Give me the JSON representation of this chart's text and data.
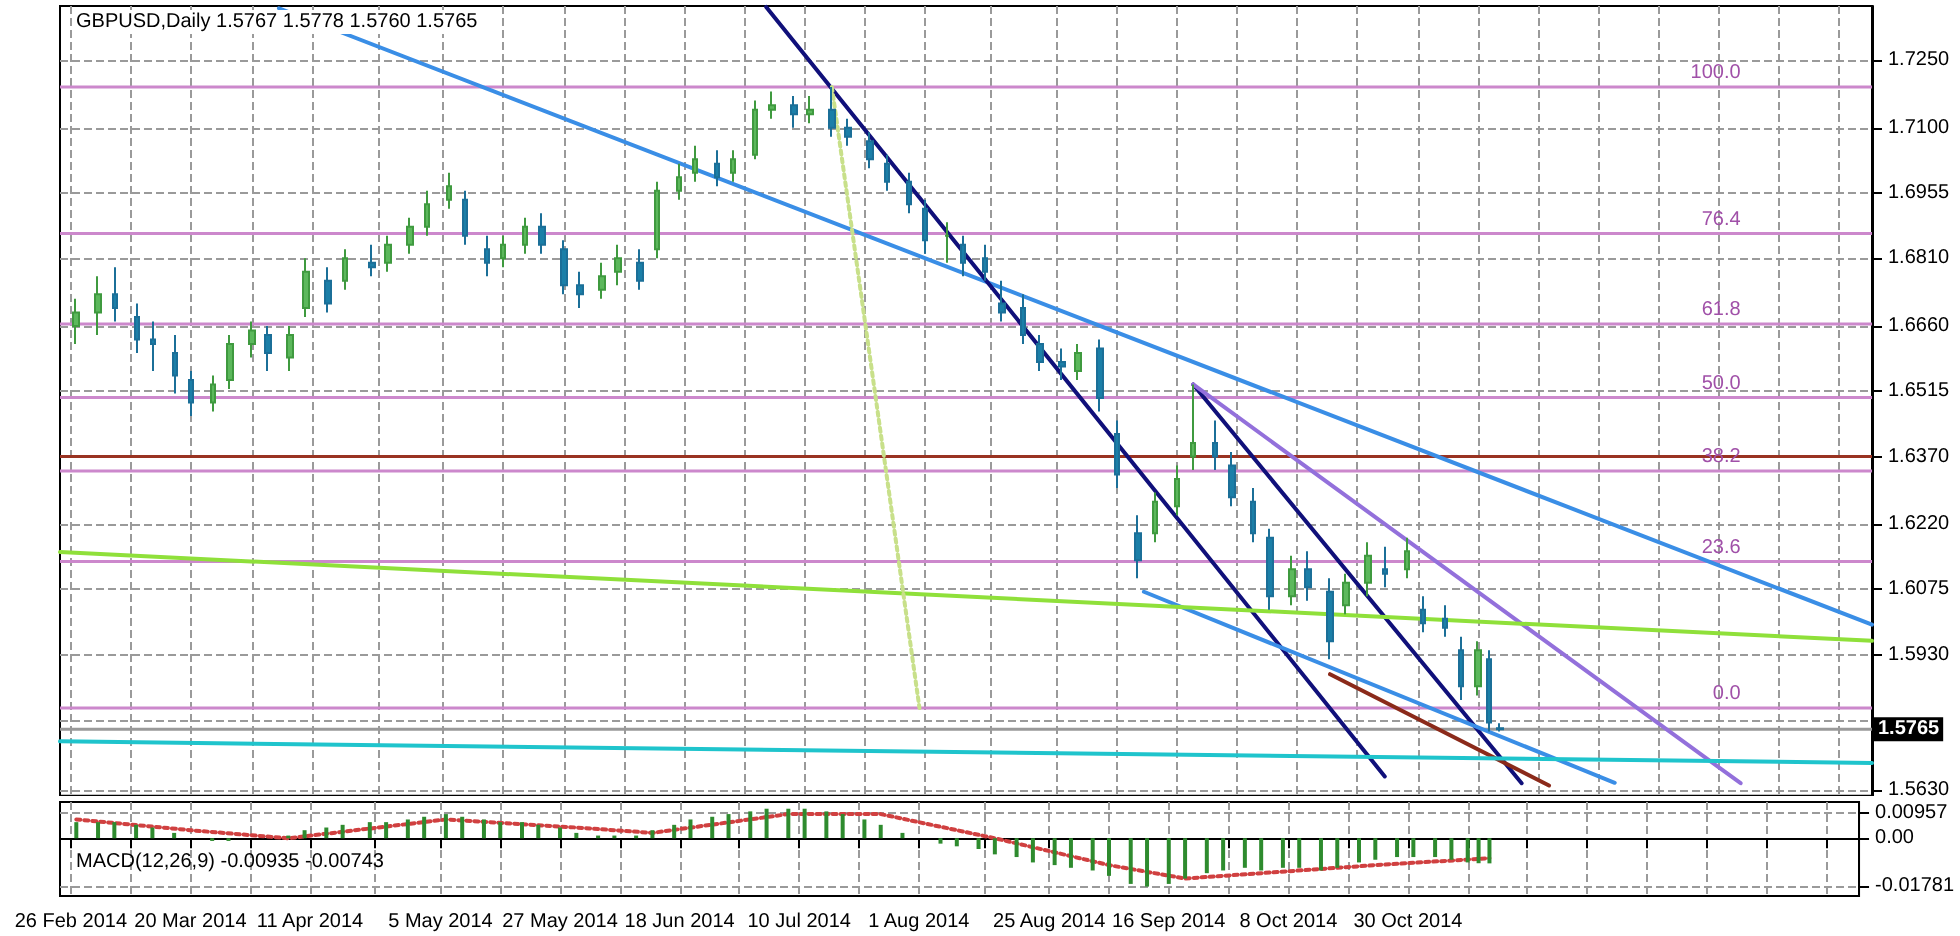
{
  "chart_data": [
    {
      "type": "candlestick",
      "title": "GBPUSD,Daily 1.5767 1.5778 1.5760 1.5765",
      "x": [
        "2014-02-27",
        "2014-03-03",
        "2014-03-06",
        "2014-03-10",
        "2014-03-13",
        "2014-03-17",
        "2014-03-20",
        "2014-03-24",
        "2014-03-27",
        "2014-03-31",
        "2014-04-03",
        "2014-04-07",
        "2014-04-10",
        "2014-04-14",
        "2014-04-17",
        "2014-04-22",
        "2014-04-25",
        "2014-04-29",
        "2014-05-02",
        "2014-05-06",
        "2014-05-09",
        "2014-05-13",
        "2014-05-16",
        "2014-05-20",
        "2014-05-23",
        "2014-05-27",
        "2014-05-30",
        "2014-06-03",
        "2014-06-06",
        "2014-06-10",
        "2014-06-13",
        "2014-06-17",
        "2014-06-20",
        "2014-06-24",
        "2014-06-27",
        "2014-07-01",
        "2014-07-04",
        "2014-07-08",
        "2014-07-11",
        "2014-07-15",
        "2014-07-18",
        "2014-07-22",
        "2014-07-25",
        "2014-07-29",
        "2014-08-01",
        "2014-08-05",
        "2014-08-08",
        "2014-08-12",
        "2014-08-15",
        "2014-08-19",
        "2014-08-22",
        "2014-08-26",
        "2014-08-29",
        "2014-09-02",
        "2014-09-05",
        "2014-09-09",
        "2014-09-12",
        "2014-09-16",
        "2014-09-19",
        "2014-09-23",
        "2014-09-26",
        "2014-09-30",
        "2014-10-03",
        "2014-10-07",
        "2014-10-10",
        "2014-10-14",
        "2014-10-17",
        "2014-10-21",
        "2014-10-24",
        "2014-10-28",
        "2014-10-31",
        "2014-11-04",
        "2014-11-07",
        "2014-11-10",
        "2014-11-12",
        "2014-11-14"
      ],
      "ohlc": [
        [
          1.666,
          1.672,
          1.662,
          1.669
        ],
        [
          1.669,
          1.677,
          1.664,
          1.673
        ],
        [
          1.673,
          1.679,
          1.667,
          1.67
        ],
        [
          1.668,
          1.671,
          1.66,
          1.663
        ],
        [
          1.663,
          1.667,
          1.656,
          1.662
        ],
        [
          1.66,
          1.664,
          1.651,
          1.655
        ],
        [
          1.654,
          1.656,
          1.646,
          1.649
        ],
        [
          1.649,
          1.655,
          1.647,
          1.653
        ],
        [
          1.654,
          1.664,
          1.652,
          1.662
        ],
        [
          1.662,
          1.667,
          1.659,
          1.665
        ],
        [
          1.664,
          1.666,
          1.656,
          1.66
        ],
        [
          1.659,
          1.666,
          1.656,
          1.664
        ],
        [
          1.67,
          1.681,
          1.668,
          1.678
        ],
        [
          1.676,
          1.679,
          1.669,
          1.671
        ],
        [
          1.676,
          1.683,
          1.674,
          1.681
        ],
        [
          1.68,
          1.684,
          1.677,
          1.679
        ],
        [
          1.68,
          1.686,
          1.678,
          1.684
        ],
        [
          1.684,
          1.69,
          1.682,
          1.688
        ],
        [
          1.688,
          1.696,
          1.686,
          1.693
        ],
        [
          1.694,
          1.7,
          1.692,
          1.697
        ],
        [
          1.694,
          1.696,
          1.684,
          1.686
        ],
        [
          1.683,
          1.686,
          1.677,
          1.68
        ],
        [
          1.681,
          1.686,
          1.679,
          1.684
        ],
        [
          1.684,
          1.69,
          1.682,
          1.688
        ],
        [
          1.688,
          1.691,
          1.682,
          1.684
        ],
        [
          1.683,
          1.685,
          1.673,
          1.675
        ],
        [
          1.675,
          1.678,
          1.67,
          1.673
        ],
        [
          1.674,
          1.68,
          1.672,
          1.677
        ],
        [
          1.678,
          1.684,
          1.675,
          1.681
        ],
        [
          1.68,
          1.683,
          1.674,
          1.676
        ],
        [
          1.683,
          1.698,
          1.681,
          1.696
        ],
        [
          1.696,
          1.702,
          1.694,
          1.699
        ],
        [
          1.7,
          1.706,
          1.698,
          1.703
        ],
        [
          1.702,
          1.705,
          1.697,
          1.699
        ],
        [
          1.7,
          1.705,
          1.698,
          1.703
        ],
        [
          1.704,
          1.716,
          1.703,
          1.714
        ],
        [
          1.714,
          1.718,
          1.712,
          1.715
        ],
        [
          1.715,
          1.717,
          1.71,
          1.713
        ],
        [
          1.713,
          1.717,
          1.711,
          1.714
        ],
        [
          1.714,
          1.719,
          1.708,
          1.71
        ],
        [
          1.71,
          1.712,
          1.706,
          1.708
        ],
        [
          1.707,
          1.709,
          1.701,
          1.703
        ],
        [
          1.702,
          1.704,
          1.696,
          1.698
        ],
        [
          1.698,
          1.7,
          1.691,
          1.693
        ],
        [
          1.692,
          1.694,
          1.682,
          1.685
        ],
        [
          1.686,
          1.689,
          1.68,
          1.686
        ],
        [
          1.684,
          1.686,
          1.677,
          1.68
        ],
        [
          1.681,
          1.684,
          1.676,
          1.678
        ],
        [
          1.671,
          1.676,
          1.667,
          1.669
        ],
        [
          1.67,
          1.673,
          1.662,
          1.664
        ],
        [
          1.662,
          1.664,
          1.656,
          1.658
        ],
        [
          1.658,
          1.661,
          1.654,
          1.657
        ],
        [
          1.656,
          1.662,
          1.654,
          1.66
        ],
        [
          1.661,
          1.663,
          1.647,
          1.65
        ],
        [
          1.642,
          1.645,
          1.63,
          1.633
        ],
        [
          1.62,
          1.624,
          1.61,
          1.614
        ],
        [
          1.62,
          1.629,
          1.618,
          1.627
        ],
        [
          1.626,
          1.635,
          1.624,
          1.632
        ],
        [
          1.637,
          1.653,
          1.634,
          1.64
        ],
        [
          1.64,
          1.645,
          1.634,
          1.637
        ],
        [
          1.635,
          1.638,
          1.626,
          1.628
        ],
        [
          1.627,
          1.63,
          1.618,
          1.62
        ],
        [
          1.619,
          1.621,
          1.603,
          1.606
        ],
        [
          1.606,
          1.615,
          1.604,
          1.612
        ],
        [
          1.612,
          1.616,
          1.605,
          1.608
        ],
        [
          1.607,
          1.61,
          1.592,
          1.596
        ],
        [
          1.604,
          1.611,
          1.602,
          1.609
        ],
        [
          1.609,
          1.618,
          1.606,
          1.615
        ],
        [
          1.612,
          1.617,
          1.608,
          1.611
        ],
        [
          1.612,
          1.619,
          1.61,
          1.616
        ],
        [
          1.603,
          1.606,
          1.598,
          1.6
        ],
        [
          1.601,
          1.604,
          1.597,
          1.599
        ],
        [
          1.594,
          1.597,
          1.583,
          1.586
        ],
        [
          1.586,
          1.596,
          1.584,
          1.594
        ],
        [
          1.592,
          1.594,
          1.576,
          1.578
        ],
        [
          1.5767,
          1.5778,
          1.576,
          1.5765
        ]
      ],
      "series": [
        {
          "type": "line",
          "x": [
            "2014-04-05",
            "2015-01-21"
          ],
          "values": [
            1.7365,
            1.5997
          ],
          "color": "#3a8ee6"
        },
        {
          "type": "line",
          "x": [
            "2014-07-03",
            "2014-10-24"
          ],
          "values": [
            1.7368,
            1.566
          ],
          "color": "#10107a"
        },
        {
          "type": "line",
          "x": [
            "2014-09-19",
            "2014-11-18"
          ],
          "values": [
            1.653,
            1.5645
          ],
          "color": "#10107a"
        },
        {
          "type": "line",
          "x": [
            "2014-09-19",
            "2014-12-28"
          ],
          "values": [
            1.653,
            1.5645
          ],
          "color": "#9370db"
        },
        {
          "type": "line",
          "x": [
            "2014-09-10",
            "2014-12-05"
          ],
          "values": [
            1.607,
            1.5646
          ],
          "color": "#3a8ee6"
        },
        {
          "type": "line",
          "x": [
            "2014-10-14",
            "2014-11-23"
          ],
          "values": [
            1.5887,
            1.564
          ],
          "color": "#8b2a1a"
        },
        {
          "type": "line",
          "x": [
            "2014-02-24",
            "2015-01-21"
          ],
          "values": [
            1.5738,
            1.569
          ],
          "color": "#1fc4cc"
        },
        {
          "type": "line",
          "x": [
            "2014-02-24",
            "2015-01-21"
          ],
          "values": [
            1.6158,
            1.5961
          ],
          "color": "#8fe03a"
        },
        {
          "type": "line",
          "x": [
            "2014-07-15",
            "2014-07-31"
          ],
          "values": [
            1.719,
            1.5812
          ],
          "color": "#c8e08a",
          "line_style": "dotted"
        }
      ],
      "ref_lines": [
        {
          "axis": "y",
          "value": 1.719,
          "color": "#cc88cc"
        },
        {
          "axis": "y",
          "value": 1.6865,
          "color": "#cc88cc"
        },
        {
          "axis": "y",
          "value": 1.6664,
          "color": "#cc88cc"
        },
        {
          "axis": "y",
          "value": 1.6501,
          "color": "#cc88cc"
        },
        {
          "axis": "y",
          "value": 1.6338,
          "color": "#cc88cc"
        },
        {
          "axis": "y",
          "value": 1.6137,
          "color": "#cc88cc"
        },
        {
          "axis": "y",
          "value": 1.5812,
          "color": "#cc88cc"
        },
        {
          "axis": "y",
          "value": 1.637,
          "color": "#993322"
        },
        {
          "axis": "y",
          "value": 1.5765,
          "color": "#999999"
        }
      ],
      "annotations": [
        {
          "text": "100.0",
          "x": "2014-12-28",
          "y": 1.719
        },
        {
          "text": "76.4",
          "x": "2014-12-28",
          "y": 1.6865
        },
        {
          "text": "61.8",
          "x": "2014-12-28",
          "y": 1.6664
        },
        {
          "text": "50.0",
          "x": "2014-12-28",
          "y": 1.6501
        },
        {
          "text": "38.2",
          "x": "2014-12-28",
          "y": 1.6338
        },
        {
          "text": "23.6",
          "x": "2014-12-28",
          "y": 1.6137
        },
        {
          "text": "0.0",
          "x": "2014-12-28",
          "y": 1.5812
        },
        {
          "text": "1.5765",
          "x": "2015-01-21",
          "y": 1.5765
        }
      ],
      "xlim": [
        "2014-02-24",
        "2015-01-21"
      ],
      "xticks": [
        {
          "value": "2014-02-26",
          "label": null
        },
        {
          "value": "2014-03-09",
          "label": null
        },
        {
          "value": "2014-03-20",
          "label": null
        },
        {
          "value": "2014-03-31",
          "label": null
        },
        {
          "value": "2014-04-11",
          "label": null
        },
        {
          "value": "2014-04-23",
          "label": null
        },
        {
          "value": "2014-05-05",
          "label": null
        },
        {
          "value": "2014-05-16",
          "label": null
        },
        {
          "value": "2014-05-27",
          "label": null
        },
        {
          "value": "2014-06-07",
          "label": null
        },
        {
          "value": "2014-06-18",
          "label": null
        },
        {
          "value": "2014-06-29",
          "label": null
        },
        {
          "value": "2014-07-10",
          "label": null
        },
        {
          "value": "2014-07-21",
          "label": null
        },
        {
          "value": "2014-08-01",
          "label": null
        },
        {
          "value": "2014-08-13",
          "label": null
        },
        {
          "value": "2014-08-25",
          "label": null
        },
        {
          "value": "2014-09-05",
          "label": null
        },
        {
          "value": "2014-09-16",
          "label": null
        },
        {
          "value": "2014-09-27",
          "label": null
        },
        {
          "value": "2014-10-08",
          "label": null
        },
        {
          "value": "2014-10-19",
          "label": null
        },
        {
          "value": "2014-10-30",
          "label": null
        },
        {
          "value": "2014-11-10",
          "label": null
        },
        {
          "value": "2014-11-21",
          "label": null
        },
        {
          "value": "2014-12-02",
          "label": null
        },
        {
          "value": "2014-12-13",
          "label": null
        },
        {
          "value": "2014-12-24",
          "label": null
        },
        {
          "value": "2015-01-04",
          "label": null
        },
        {
          "value": "2015-01-15",
          "label": null
        }
      ],
      "ylim": [
        1.5617,
        1.737
      ],
      "yticks": [
        {
          "value": 1.725,
          "label": "1.7250"
        },
        {
          "value": 1.71,
          "label": "1.7100"
        },
        {
          "value": 1.6955,
          "label": "1.6955"
        },
        {
          "value": 1.681,
          "label": "1.6810"
        },
        {
          "value": 1.666,
          "label": "1.6660"
        },
        {
          "value": 1.6515,
          "label": "1.6515"
        },
        {
          "value": 1.637,
          "label": "1.6370"
        },
        {
          "value": 1.622,
          "label": "1.6220"
        },
        {
          "value": 1.6075,
          "label": "1.6075"
        },
        {
          "value": 1.593,
          "label": "1.5930"
        },
        {
          "value": 1.5785,
          "label": null
        },
        {
          "value": 1.563,
          "label": "1.5630"
        }
      ],
      "grid": true,
      "tick_labels": "y"
    },
    {
      "type": "bar",
      "title": "MACD(12,26,9) -0.00935 -0.00743",
      "x": [
        "2014-02-27",
        "2014-03-03",
        "2014-03-06",
        "2014-03-10",
        "2014-03-13",
        "2014-03-17",
        "2014-03-20",
        "2014-03-24",
        "2014-03-27",
        "2014-03-31",
        "2014-04-03",
        "2014-04-07",
        "2014-04-10",
        "2014-04-14",
        "2014-04-17",
        "2014-04-22",
        "2014-04-25",
        "2014-04-29",
        "2014-05-02",
        "2014-05-06",
        "2014-05-09",
        "2014-05-13",
        "2014-05-16",
        "2014-05-20",
        "2014-05-23",
        "2014-05-27",
        "2014-05-30",
        "2014-06-03",
        "2014-06-06",
        "2014-06-10",
        "2014-06-13",
        "2014-06-17",
        "2014-06-20",
        "2014-06-24",
        "2014-06-27",
        "2014-07-01",
        "2014-07-04",
        "2014-07-08",
        "2014-07-11",
        "2014-07-15",
        "2014-07-18",
        "2014-07-22",
        "2014-07-25",
        "2014-07-29",
        "2014-08-01",
        "2014-08-05",
        "2014-08-08",
        "2014-08-12",
        "2014-08-15",
        "2014-08-19",
        "2014-08-22",
        "2014-08-26",
        "2014-08-29",
        "2014-09-02",
        "2014-09-05",
        "2014-09-09",
        "2014-09-12",
        "2014-09-16",
        "2014-09-19",
        "2014-09-23",
        "2014-09-26",
        "2014-09-30",
        "2014-10-03",
        "2014-10-07",
        "2014-10-10",
        "2014-10-14",
        "2014-10-17",
        "2014-10-21",
        "2014-10-24",
        "2014-10-28",
        "2014-10-31",
        "2014-11-04",
        "2014-11-07",
        "2014-11-10",
        "2014-11-12",
        "2014-11-14"
      ],
      "series": [
        {
          "color": "#2e8b2e",
          "values": [
            0.006,
            0.006,
            0.006,
            0.005,
            0.004,
            0.002,
            0.0,
            -0.001,
            -0.001,
            0.0,
            0.0,
            0.001,
            0.003,
            0.004,
            0.005,
            0.006,
            0.006,
            0.007,
            0.008,
            0.009,
            0.008,
            0.007,
            0.006,
            0.006,
            0.005,
            0.004,
            0.002,
            0.001,
            0.001,
            0.001,
            0.003,
            0.005,
            0.007,
            0.008,
            0.009,
            0.01,
            0.011,
            0.011,
            0.011,
            0.01,
            0.009,
            0.007,
            0.005,
            0.002,
            0.0,
            -0.002,
            -0.003,
            -0.004,
            -0.006,
            -0.007,
            -0.009,
            -0.01,
            -0.011,
            -0.012,
            -0.014,
            -0.017,
            -0.018,
            -0.017,
            -0.015,
            -0.013,
            -0.012,
            -0.011,
            -0.012,
            -0.011,
            -0.011,
            -0.012,
            -0.011,
            -0.009,
            -0.008,
            -0.007,
            -0.007,
            -0.007,
            -0.008,
            -0.009,
            -0.0093,
            -0.00935
          ]
        },
        {
          "type": "line",
          "x": [
            "2014-02-27",
            "2014-03-20",
            "2014-04-07",
            "2014-05-06",
            "2014-05-30",
            "2014-06-13",
            "2014-07-08",
            "2014-07-25",
            "2014-08-15",
            "2014-09-05",
            "2014-09-19",
            "2014-10-03",
            "2014-10-24",
            "2014-11-14"
          ],
          "values": [
            0.007,
            0.003,
            0.0,
            0.007,
            0.004,
            0.002,
            0.009,
            0.009,
            0.0,
            -0.01,
            -0.015,
            -0.013,
            -0.01,
            -0.00743
          ],
          "color": "#d04040",
          "line_style": "dotted"
        }
      ],
      "xlim": [
        "2014-02-24",
        "2015-01-21"
      ],
      "xticks": [
        {
          "value": "2014-02-26",
          "label": "26 Feb 2014"
        },
        {
          "value": "2014-03-09",
          "label": null
        },
        {
          "value": "2014-03-20",
          "label": "20 Mar 2014"
        },
        {
          "value": "2014-03-31",
          "label": null
        },
        {
          "value": "2014-04-11",
          "label": "11 Apr 2014"
        },
        {
          "value": "2014-04-23",
          "label": null
        },
        {
          "value": "2014-05-05",
          "label": "5 May 2014"
        },
        {
          "value": "2014-05-16",
          "label": null
        },
        {
          "value": "2014-05-27",
          "label": "27 May 2014"
        },
        {
          "value": "2014-06-07",
          "label": null
        },
        {
          "value": "2014-06-18",
          "label": "18 Jun 2014"
        },
        {
          "value": "2014-06-29",
          "label": null
        },
        {
          "value": "2014-07-10",
          "label": "10 Jul 2014"
        },
        {
          "value": "2014-07-21",
          "label": null
        },
        {
          "value": "2014-08-01",
          "label": "1 Aug 2014"
        },
        {
          "value": "2014-08-13",
          "label": null
        },
        {
          "value": "2014-08-25",
          "label": "25 Aug 2014"
        },
        {
          "value": "2014-09-05",
          "label": null
        },
        {
          "value": "2014-09-16",
          "label": "16 Sep 2014"
        },
        {
          "value": "2014-09-27",
          "label": null
        },
        {
          "value": "2014-10-08",
          "label": "8 Oct 2014"
        },
        {
          "value": "2014-10-19",
          "label": null
        },
        {
          "value": "2014-10-30",
          "label": "30 Oct 2014"
        },
        {
          "value": "2014-11-10",
          "label": null
        },
        {
          "value": "2014-11-21",
          "label": null
        },
        {
          "value": "2014-12-02",
          "label": null
        },
        {
          "value": "2014-12-13",
          "label": null
        },
        {
          "value": "2014-12-24",
          "label": null
        },
        {
          "value": "2015-01-04",
          "label": null
        },
        {
          "value": "2015-01-15",
          "label": null
        }
      ],
      "ylim": [
        -0.0215,
        0.0135
      ],
      "yticks": [
        0.00957,
        {
          "value": 0,
          "label": "0.00"
        },
        -0.01781
      ],
      "grid": true
    }
  ]
}
